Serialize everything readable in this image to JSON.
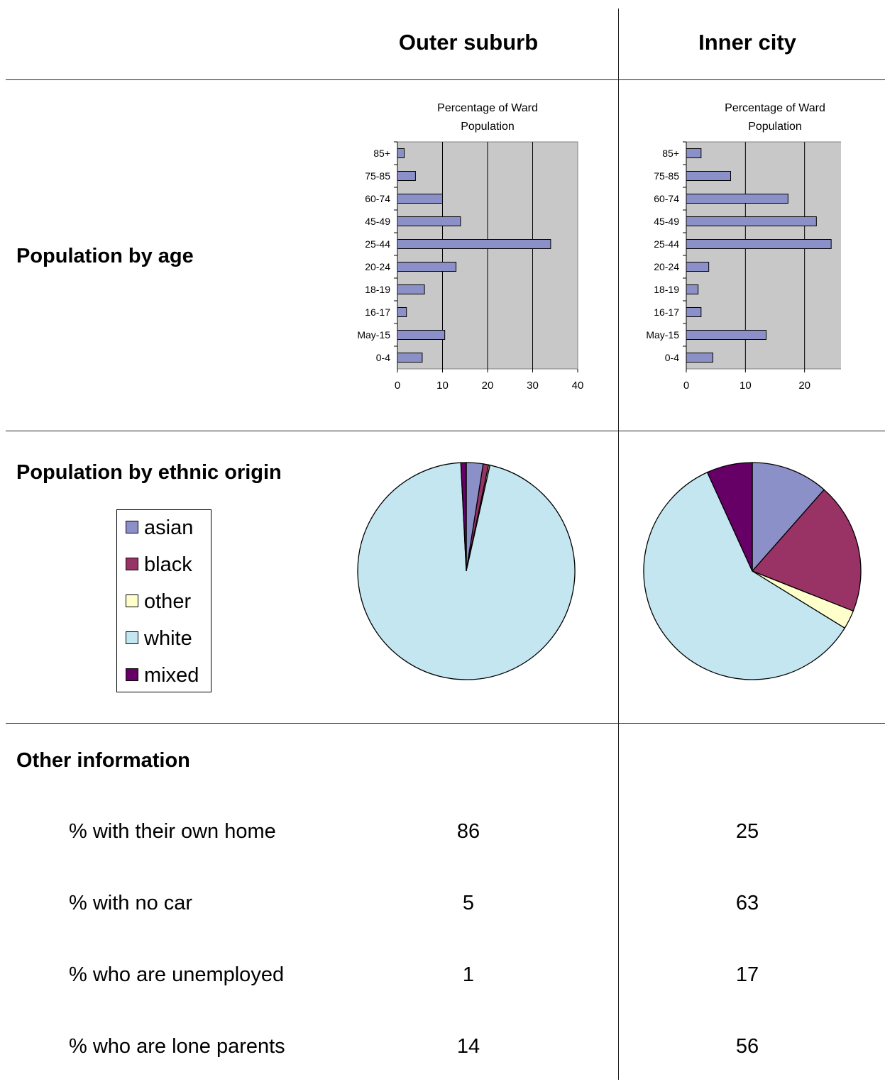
{
  "header": {
    "col1": "Outer suburb",
    "col2": "Inner city"
  },
  "rows": {
    "age": "Population by age",
    "ethnic": "Population by ethnic origin",
    "other": "Other information"
  },
  "colors": {
    "asian": "#8c90c8",
    "black": "#993366",
    "other": "#ffffcc",
    "white": "#c4e6f0",
    "mixed": "#660066",
    "bar": "#8c90c8",
    "plot_bg": "#c8c8c8"
  },
  "legend": [
    {
      "key": "asian",
      "label": "asian"
    },
    {
      "key": "black",
      "label": "black"
    },
    {
      "key": "other",
      "label": "other"
    },
    {
      "key": "white",
      "label": "white"
    },
    {
      "key": "mixed",
      "label": "mixed"
    }
  ],
  "chart_data": [
    {
      "type": "bar",
      "orientation": "horizontal",
      "title": "Percentage of Ward Population",
      "categories": [
        "85+",
        "75-85",
        "60-74",
        "45-49",
        "25-44",
        "20-24",
        "18-19",
        "16-17",
        "May-15",
        "0-4"
      ],
      "values": [
        1.5,
        4,
        10,
        14,
        34,
        13,
        6,
        2,
        10.5,
        5.5
      ],
      "xlim": [
        0,
        40
      ],
      "xticks": [
        0,
        10,
        20,
        30,
        40
      ],
      "grid": true
    },
    {
      "type": "bar",
      "orientation": "horizontal",
      "title": "Percentage of Ward Population",
      "categories": [
        "85+",
        "75-85",
        "60-74",
        "45-49",
        "25-44",
        "20-24",
        "18-19",
        "16-17",
        "May-15",
        "0-4"
      ],
      "values": [
        2.5,
        7.5,
        17.2,
        22,
        24.5,
        3.8,
        2,
        2.5,
        13.5,
        4.5
      ],
      "xlim": [
        0,
        30
      ],
      "xticks": [
        0,
        10,
        20,
        30
      ],
      "grid": true
    },
    {
      "type": "pie",
      "slices": [
        {
          "key": "asian",
          "value": 2.5
        },
        {
          "key": "black",
          "value": 0.8
        },
        {
          "key": "other",
          "value": 0.2
        },
        {
          "key": "white",
          "value": 95.7
        },
        {
          "key": "mixed",
          "value": 0.8
        }
      ]
    },
    {
      "type": "pie",
      "slices": [
        {
          "key": "asian",
          "value": 11.5
        },
        {
          "key": "black",
          "value": 19.5
        },
        {
          "key": "other",
          "value": 2.8
        },
        {
          "key": "white",
          "value": 59.4
        },
        {
          "key": "mixed",
          "value": 6.8
        }
      ]
    }
  ],
  "other_info": [
    {
      "label": "% with their own home",
      "outer": "86",
      "inner": "25"
    },
    {
      "label": "% with no car",
      "outer": "5",
      "inner": "63"
    },
    {
      "label": "% who are unemployed",
      "outer": "1",
      "inner": "17"
    },
    {
      "label": "% who are lone parents",
      "outer": "14",
      "inner": "56"
    }
  ]
}
